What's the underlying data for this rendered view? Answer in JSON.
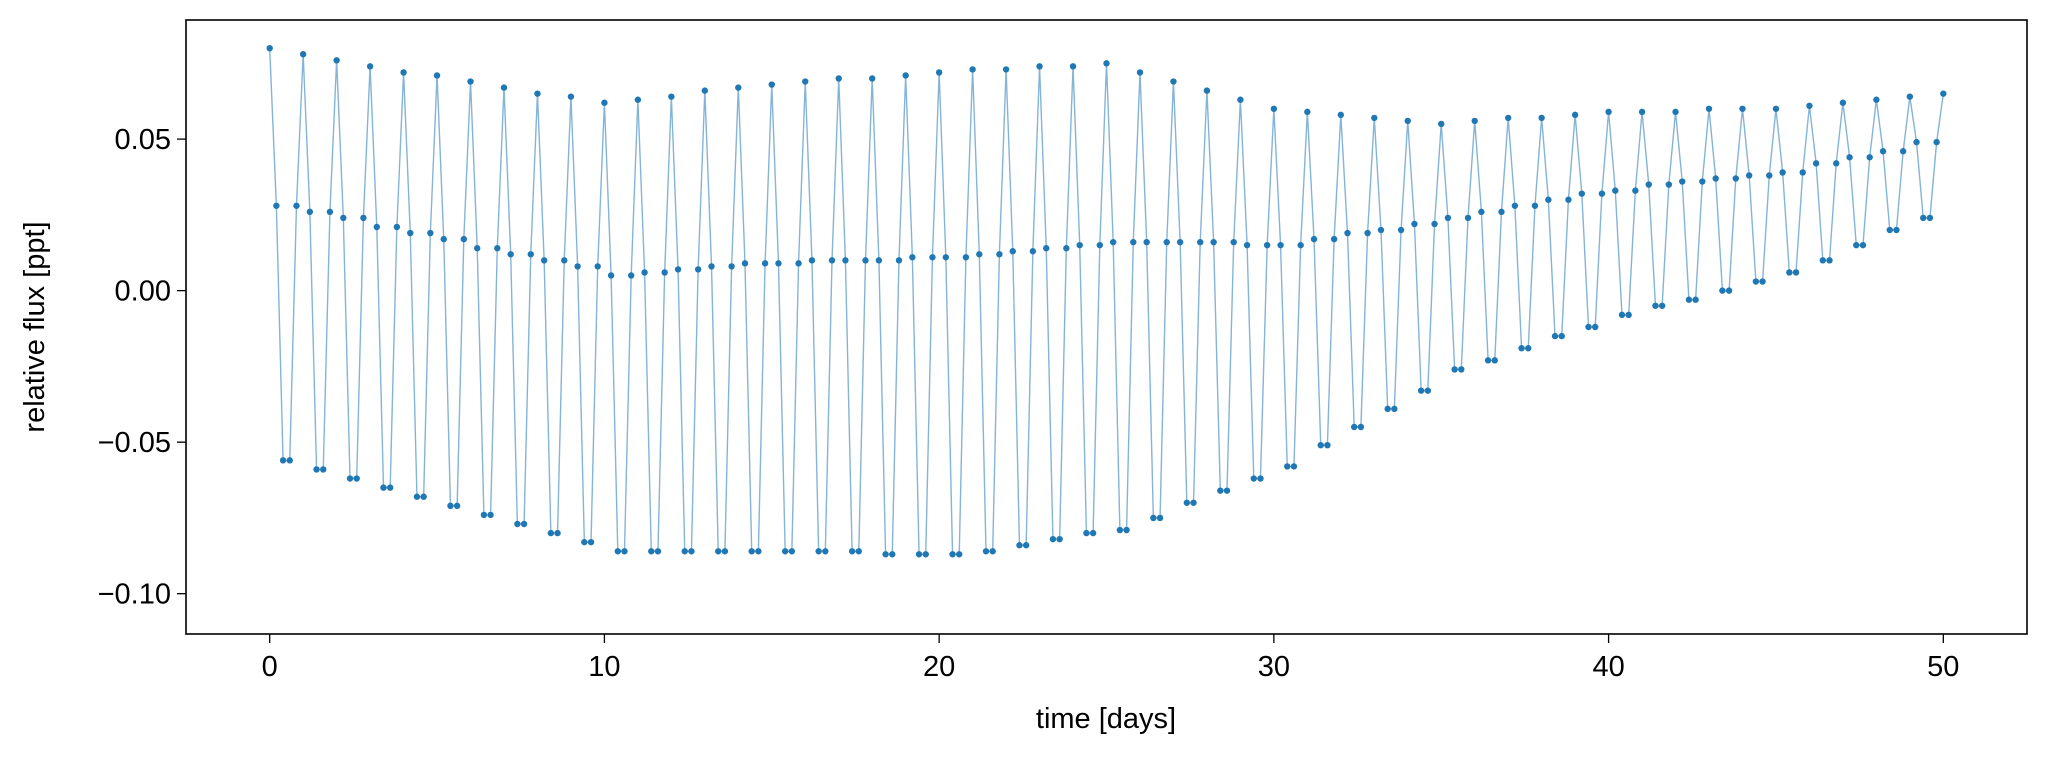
{
  "chart_data": {
    "type": "line",
    "xlabel": "time [days]",
    "ylabel": "relative flux [ppt]",
    "color": "#1f77b4",
    "markers": true,
    "xlim": [
      -2.5,
      52.5
    ],
    "ylim": [
      -0.1133,
      0.0893
    ],
    "xticks": [
      0,
      10,
      20,
      30,
      40,
      50
    ],
    "yticks": [
      {
        "value": 0.05,
        "label": "0.05"
      },
      {
        "value": 0,
        "label": "0.00"
      },
      {
        "value": -0.05,
        "label": "−0.05"
      },
      {
        "value": -0.1,
        "label": "−0.10"
      }
    ],
    "x": [
      0,
      0.2,
      0.4,
      0.6,
      0.8,
      1,
      1.2,
      1.4,
      1.6,
      1.8,
      2,
      2.2,
      2.4,
      2.6,
      2.8,
      3,
      3.2,
      3.4,
      3.6,
      3.8,
      4,
      4.2,
      4.4,
      4.6,
      4.8,
      5,
      5.2,
      5.4,
      5.6,
      5.8,
      6,
      6.2,
      6.4,
      6.6,
      6.8,
      7,
      7.2,
      7.4,
      7.6,
      7.8,
      8,
      8.2,
      8.4,
      8.6,
      8.8,
      9,
      9.2,
      9.4,
      9.6,
      9.8,
      10,
      10.2,
      10.4,
      10.6,
      10.8,
      11,
      11.2,
      11.4,
      11.6,
      11.8,
      12,
      12.2,
      12.4,
      12.6,
      12.8,
      13,
      13.2,
      13.4,
      13.6,
      13.8,
      14,
      14.2,
      14.4,
      14.6,
      14.8,
      15,
      15.2,
      15.4,
      15.6,
      15.8,
      16,
      16.2,
      16.4,
      16.6,
      16.8,
      17,
      17.2,
      17.4,
      17.6,
      17.8,
      18,
      18.2,
      18.4,
      18.6,
      18.8,
      19,
      19.2,
      19.4,
      19.6,
      19.8,
      20,
      20.2,
      20.4,
      20.6,
      20.8,
      21,
      21.2,
      21.4,
      21.6,
      21.8,
      22,
      22.2,
      22.4,
      22.6,
      22.8,
      23,
      23.2,
      23.4,
      23.6,
      23.8,
      24,
      24.2,
      24.4,
      24.6,
      24.8,
      25,
      25.2,
      25.4,
      25.6,
      25.8,
      26,
      26.2,
      26.4,
      26.6,
      26.8,
      27,
      27.2,
      27.4,
      27.6,
      27.8,
      28,
      28.2,
      28.4,
      28.6,
      28.8,
      29,
      29.2,
      29.4,
      29.6,
      29.8,
      30,
      30.2,
      30.4,
      30.6,
      30.8,
      31,
      31.2,
      31.4,
      31.6,
      31.8,
      32,
      32.2,
      32.4,
      32.6,
      32.8,
      33,
      33.2,
      33.4,
      33.6,
      33.8,
      34,
      34.2,
      34.4,
      34.6,
      34.8,
      35,
      35.2,
      35.4,
      35.6,
      35.8,
      36,
      36.2,
      36.4,
      36.6,
      36.8,
      37,
      37.2,
      37.4,
      37.6,
      37.8,
      38,
      38.2,
      38.4,
      38.6,
      38.8,
      39,
      39.2,
      39.4,
      39.6,
      39.8,
      40,
      40.2,
      40.4,
      40.6,
      40.8,
      41,
      41.2,
      41.4,
      41.6,
      41.8,
      42,
      42.2,
      42.4,
      42.6,
      42.8,
      43,
      43.2,
      43.4,
      43.6,
      43.8,
      44,
      44.2,
      44.4,
      44.6,
      44.8,
      45,
      45.2,
      45.4,
      45.6,
      45.8,
      46,
      46.2,
      46.4,
      46.6,
      46.8,
      47,
      47.2,
      47.4,
      47.6,
      47.8,
      48,
      48.2,
      48.4,
      48.6,
      48.8,
      49,
      49.2,
      49.4,
      49.6,
      49.8,
      50
    ],
    "values": [
      0.08,
      0.028,
      -0.056,
      -0.056,
      0.028,
      0.078,
      0.026,
      -0.059,
      -0.059,
      0.026,
      0.076,
      0.024,
      -0.062,
      -0.062,
      0.024,
      0.074,
      0.021,
      -0.065,
      -0.065,
      0.021,
      0.072,
      0.019,
      -0.068,
      -0.068,
      0.019,
      0.071,
      0.017,
      -0.071,
      -0.071,
      0.017,
      0.069,
      0.014,
      -0.074,
      -0.074,
      0.014,
      0.067,
      0.012,
      -0.077,
      -0.077,
      0.012,
      0.065,
      0.01,
      -0.08,
      -0.08,
      0.01,
      0.064,
      0.008,
      -0.083,
      -0.083,
      0.008,
      0.062,
      0.005,
      -0.086,
      -0.086,
      0.005,
      0.063,
      0.006,
      -0.086,
      -0.086,
      0.006,
      0.064,
      0.007,
      -0.086,
      -0.086,
      0.007,
      0.066,
      0.008,
      -0.086,
      -0.086,
      0.008,
      0.067,
      0.009,
      -0.086,
      -0.086,
      0.009,
      0.068,
      0.009,
      -0.086,
      -0.086,
      0.009,
      0.069,
      0.01,
      -0.086,
      -0.086,
      0.01,
      0.07,
      0.01,
      -0.086,
      -0.086,
      0.01,
      0.07,
      0.01,
      -0.087,
      -0.087,
      0.01,
      0.071,
      0.011,
      -0.087,
      -0.087,
      0.011,
      0.072,
      0.011,
      -0.087,
      -0.087,
      0.011,
      0.073,
      0.012,
      -0.086,
      -0.086,
      0.012,
      0.073,
      0.013,
      -0.084,
      -0.084,
      0.013,
      0.074,
      0.014,
      -0.082,
      -0.082,
      0.014,
      0.074,
      0.015,
      -0.08,
      -0.08,
      0.015,
      0.075,
      0.016,
      -0.079,
      -0.079,
      0.016,
      0.072,
      0.016,
      -0.075,
      -0.075,
      0.016,
      0.069,
      0.016,
      -0.07,
      -0.07,
      0.016,
      0.066,
      0.016,
      -0.066,
      -0.066,
      0.016,
      0.063,
      0.015,
      -0.062,
      -0.062,
      0.015,
      0.06,
      0.015,
      -0.058,
      -0.058,
      0.015,
      0.059,
      0.017,
      -0.051,
      -0.051,
      0.017,
      0.058,
      0.019,
      -0.045,
      -0.045,
      0.019,
      0.057,
      0.02,
      -0.039,
      -0.039,
      0.02,
      0.056,
      0.022,
      -0.033,
      -0.033,
      0.022,
      0.055,
      0.024,
      -0.026,
      -0.026,
      0.024,
      0.056,
      0.026,
      -0.023,
      -0.023,
      0.026,
      0.057,
      0.028,
      -0.019,
      -0.019,
      0.028,
      0.057,
      0.03,
      -0.015,
      -0.015,
      0.03,
      0.058,
      0.032,
      -0.012,
      -0.012,
      0.032,
      0.059,
      0.033,
      -0.008,
      -0.008,
      0.033,
      0.059,
      0.035,
      -0.005,
      -0.005,
      0.035,
      0.059,
      0.036,
      -0.003,
      -0.003,
      0.036,
      0.06,
      0.037,
      0.0,
      0.0,
      0.037,
      0.06,
      0.038,
      0.003,
      0.003,
      0.038,
      0.06,
      0.039,
      0.006,
      0.006,
      0.039,
      0.061,
      0.042,
      0.01,
      0.01,
      0.042,
      0.062,
      0.044,
      0.015,
      0.015,
      0.044,
      0.063,
      0.046,
      0.02,
      0.02,
      0.046,
      0.064,
      0.049,
      0.024,
      0.024,
      0.049,
      0.065
    ]
  }
}
